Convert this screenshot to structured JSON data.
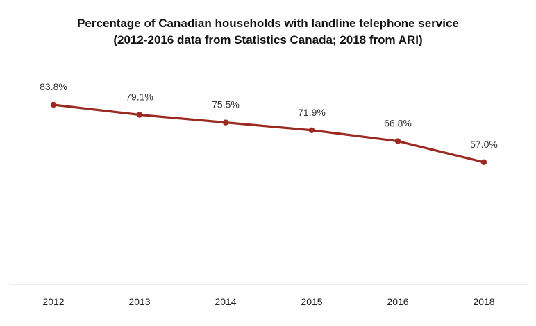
{
  "chart_data": {
    "type": "line",
    "title": "Percentage of Canadian households with landline telephone service",
    "subtitle": "(2012-2016 data from Statistics  Canada; 2018 from ARI)",
    "xlabel": "",
    "ylabel": "",
    "categories": [
      "2012",
      "2013",
      "2014",
      "2015",
      "2016",
      "2018"
    ],
    "series": [
      {
        "values": [
          83.8,
          79.1,
          75.5,
          71.9,
          66.8,
          57.0
        ],
        "labels": [
          "83.8%",
          "79.1%",
          "75.5%",
          "71.9%",
          "66.8%",
          "57.0%"
        ],
        "color": "#9b2a22"
      }
    ],
    "ylim": [
      0,
      110
    ],
    "grid": false,
    "legend": "none",
    "axis_color": "#d9d9d9"
  }
}
